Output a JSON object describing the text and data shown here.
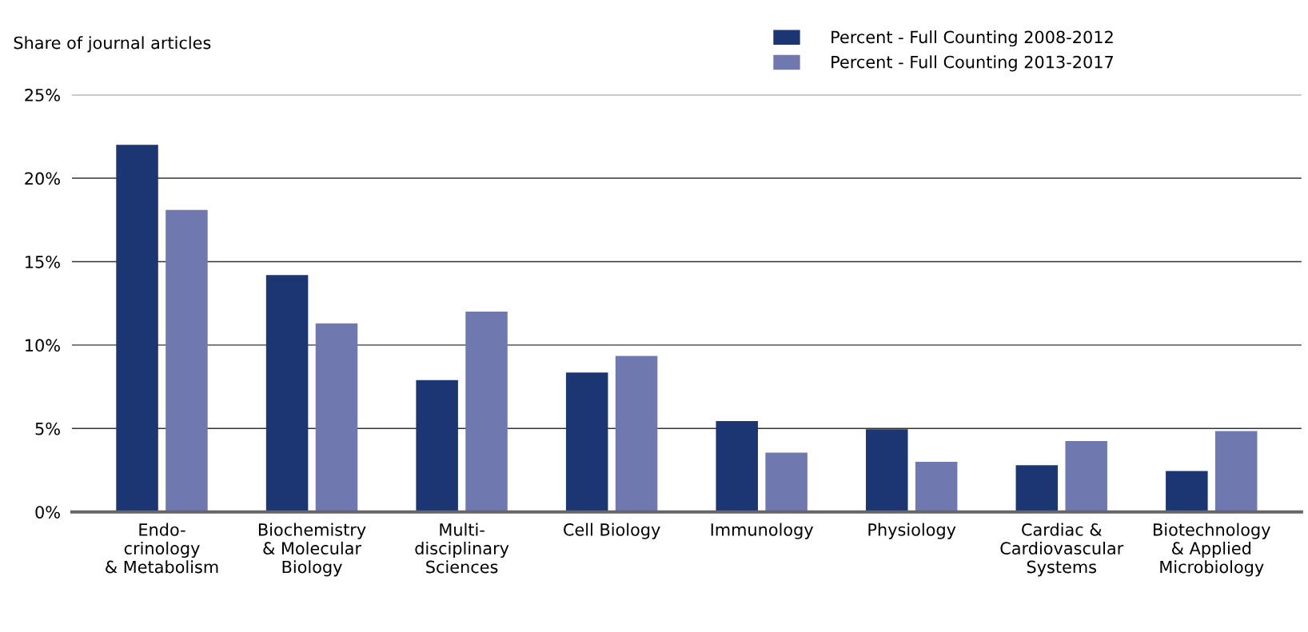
{
  "chart_data": {
    "type": "bar",
    "ylabel": "Share of journal articles",
    "categories": [
      "Endo-\ncrinology\n& Metabolism",
      "Biochemistry\n& Molecular\nBiology",
      "Multi-\ndisciplinary\nSciences",
      "Cell Biology",
      "Immunology",
      "Physiology",
      "Cardiac &\nCardiovascular\nSystems",
      "Biotechnology\n& Applied\nMicrobiology"
    ],
    "series": [
      {
        "name": "Percent - Full Counting 2008-2012",
        "color": "#1b3672",
        "values": [
          22.0,
          14.2,
          7.9,
          8.35,
          5.45,
          4.95,
          2.8,
          2.45
        ]
      },
      {
        "name": "Percent - Full Counting 2013-2017",
        "color": "#6f79b0",
        "values": [
          18.1,
          11.3,
          12.0,
          9.35,
          3.55,
          3.0,
          4.25,
          4.85
        ]
      }
    ],
    "ylim": [
      0,
      25
    ],
    "yticks": [
      {
        "value": 0,
        "label": "0%"
      },
      {
        "value": 5,
        "label": "5%"
      },
      {
        "value": 10,
        "label": "10%"
      },
      {
        "value": 15,
        "label": "15%"
      },
      {
        "value": 20,
        "label": "20%"
      },
      {
        "value": 25,
        "label": "25%"
      }
    ],
    "grid": "y",
    "legend": "top right"
  }
}
